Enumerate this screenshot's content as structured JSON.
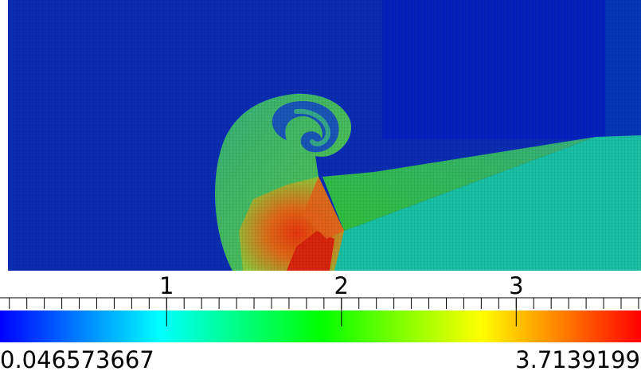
{
  "colorbar": {
    "min_label": "0.046573667",
    "max_label": "3.7139199",
    "range": [
      0.046573667,
      3.7139199
    ],
    "major_ticks": [
      {
        "value": 1,
        "label": "1"
      },
      {
        "value": 2,
        "label": "2"
      },
      {
        "value": 3,
        "label": "3"
      }
    ],
    "minor_tick_step": 0.1,
    "colormap": [
      "#0000ff",
      "#00ffff",
      "#00ff00",
      "#ffff00",
      "#ff0000"
    ]
  },
  "field": {
    "colors": {
      "background": "#0a2ab8",
      "top_right": "#0420c2",
      "lower_right": "#17c2a8",
      "wedge": "#35b85a",
      "shell": "#3faa6a",
      "hot": "#e6320f",
      "warm": "#e0a52a"
    }
  }
}
